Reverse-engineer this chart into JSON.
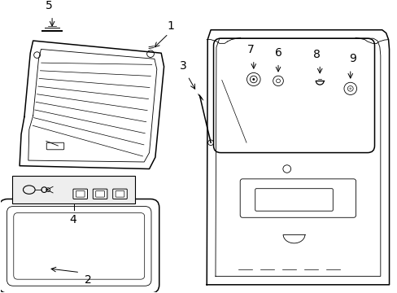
{
  "bg_color": "#ffffff",
  "line_color": "#000000",
  "figsize": [
    4.89,
    3.6
  ],
  "dpi": 100,
  "lw_main": 1.1,
  "lw_thin": 0.6
}
